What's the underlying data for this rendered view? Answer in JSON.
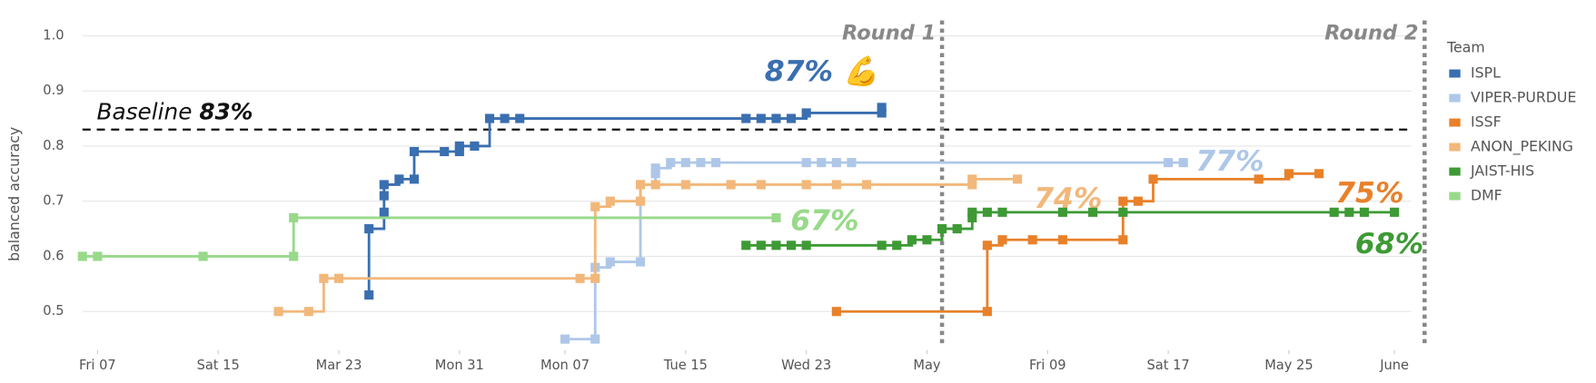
{
  "chart_data": {
    "type": "line",
    "step": true,
    "y_label": "balanced accuracy",
    "legend_title": "Team",
    "legend_position": "right",
    "grid": true,
    "xlim": [
      "03-06",
      "06-03"
    ],
    "ylim": [
      0.43,
      1.0
    ],
    "yticks": [
      {
        "value": 0.5,
        "label": "0.5"
      },
      {
        "value": 0.6,
        "label": "0.6"
      },
      {
        "value": 0.7,
        "label": "0.7"
      },
      {
        "value": 0.8,
        "label": "0.8"
      },
      {
        "value": 0.9,
        "label": "0.9"
      },
      {
        "value": 1.0,
        "label": "1.0"
      }
    ],
    "xticks": [
      {
        "value": "03-07",
        "label": "Fri 07"
      },
      {
        "value": "03-15",
        "label": "Sat 15"
      },
      {
        "value": "03-23",
        "label": "Mar 23"
      },
      {
        "value": "03-31",
        "label": "Mon 31"
      },
      {
        "value": "04-07",
        "label": "Mon 07"
      },
      {
        "value": "04-15",
        "label": "Tue 15"
      },
      {
        "value": "04-23",
        "label": "Wed 23"
      },
      {
        "value": "05-01",
        "label": "May"
      },
      {
        "value": "05-09",
        "label": "Fri 09"
      },
      {
        "value": "05-17",
        "label": "Sat 17"
      },
      {
        "value": "05-25",
        "label": "May 25"
      },
      {
        "value": "06-01",
        "label": "June"
      }
    ],
    "baseline": {
      "value": 0.83,
      "label": "Baseline",
      "value_label": "83%"
    },
    "rounds": [
      {
        "label": "Round 1",
        "x": "05-02"
      },
      {
        "label": "Round 2",
        "x": "06-03"
      }
    ],
    "series": [
      {
        "name": "ISPL",
        "color": "#3a6fb0",
        "end_label": "87% 💪",
        "x": [
          "03-25",
          "03-25",
          "03-26",
          "03-26",
          "03-26",
          "03-27",
          "03-28",
          "03-28",
          "03-30",
          "03-31",
          "03-31",
          "04-01",
          "04-02",
          "04-03",
          "04-04",
          "04-19",
          "04-20",
          "04-21",
          "04-22",
          "04-23",
          "04-28",
          "04-28"
        ],
        "values": [
          0.53,
          0.65,
          0.68,
          0.71,
          0.73,
          0.74,
          0.74,
          0.79,
          0.79,
          0.79,
          0.8,
          0.8,
          0.85,
          0.85,
          0.85,
          0.85,
          0.85,
          0.85,
          0.85,
          0.86,
          0.86,
          0.87
        ]
      },
      {
        "name": "VIPER-PURDUE",
        "color": "#aec7e8",
        "end_label": "77%",
        "x": [
          "04-07",
          "04-09",
          "04-09",
          "04-10",
          "04-12",
          "04-12",
          "04-13",
          "04-13",
          "04-14",
          "04-15",
          "04-16",
          "04-17",
          "04-23",
          "04-24",
          "04-25",
          "04-26",
          "05-17",
          "05-18"
        ],
        "values": [
          0.45,
          0.45,
          0.58,
          0.59,
          0.59,
          0.73,
          0.75,
          0.76,
          0.77,
          0.77,
          0.77,
          0.77,
          0.77,
          0.77,
          0.77,
          0.77,
          0.77,
          0.77
        ]
      },
      {
        "name": "ISSF",
        "color": "#e8812a",
        "end_label": "75%",
        "x": [
          "04-25",
          "05-05",
          "05-05",
          "05-06",
          "05-08",
          "05-10",
          "05-14",
          "05-14",
          "05-15",
          "05-16",
          "05-23",
          "05-25",
          "05-27"
        ],
        "values": [
          0.5,
          0.5,
          0.62,
          0.63,
          0.63,
          0.63,
          0.63,
          0.7,
          0.7,
          0.74,
          0.74,
          0.75,
          0.75
        ]
      },
      {
        "name": "ANON_PEKING",
        "color": "#f2b77a",
        "end_label": "74%",
        "x": [
          "03-19",
          "03-21",
          "03-22",
          "03-23",
          "04-08",
          "04-09",
          "04-09",
          "04-10",
          "04-12",
          "04-12",
          "04-13",
          "04-15",
          "04-18",
          "04-20",
          "04-23",
          "04-25",
          "04-27",
          "05-04",
          "05-04",
          "05-07"
        ],
        "values": [
          0.5,
          0.5,
          0.56,
          0.56,
          0.56,
          0.56,
          0.69,
          0.7,
          0.7,
          0.73,
          0.73,
          0.73,
          0.73,
          0.73,
          0.73,
          0.73,
          0.73,
          0.73,
          0.74,
          0.74
        ]
      },
      {
        "name": "JAIST-HIS",
        "color": "#3d9a35",
        "end_label": "68%",
        "x": [
          "04-19",
          "04-20",
          "04-21",
          "04-22",
          "04-23",
          "04-28",
          "04-29",
          "04-30",
          "05-01",
          "05-02",
          "05-03",
          "05-04",
          "05-04",
          "05-05",
          "05-06",
          "05-10",
          "05-12",
          "05-14",
          "05-28",
          "05-29",
          "05-30",
          "06-01"
        ],
        "values": [
          0.62,
          0.62,
          0.62,
          0.62,
          0.62,
          0.62,
          0.62,
          0.63,
          0.63,
          0.65,
          0.65,
          0.67,
          0.68,
          0.68,
          0.68,
          0.68,
          0.68,
          0.68,
          0.68,
          0.68,
          0.68,
          0.68
        ]
      },
      {
        "name": "DMF",
        "color": "#98d98a",
        "end_label": "67%",
        "x": [
          "03-06",
          "03-07",
          "03-14",
          "03-20",
          "03-20",
          "04-21"
        ],
        "values": [
          0.6,
          0.6,
          0.6,
          0.6,
          0.67,
          0.67
        ]
      }
    ]
  }
}
